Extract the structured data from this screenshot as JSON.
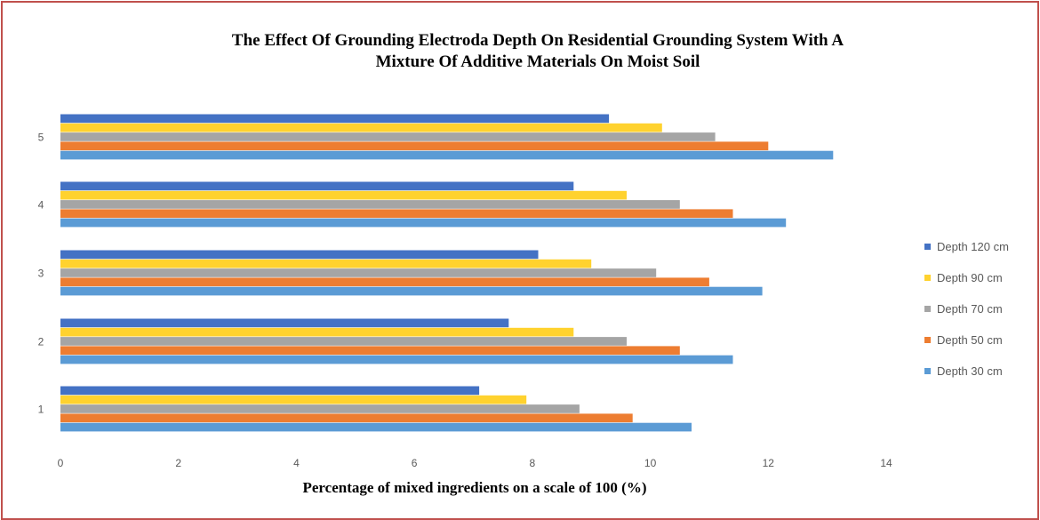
{
  "chart_data": {
    "type": "bar",
    "orientation": "horizontal",
    "title_lines": [
      "The Effect Of Grounding Electroda Depth On Residential Grounding System With A",
      "Mixture Of Additive Materials On Moist Soil"
    ],
    "xlabel": "Percentage of mixed ingredients on a scale of 100 (%)",
    "ylabel": "",
    "categories": [
      "1",
      "2",
      "3",
      "4",
      "5"
    ],
    "xlim": [
      0,
      14
    ],
    "x_ticks": [
      0,
      2,
      4,
      6,
      8,
      10,
      12,
      14
    ],
    "grid": false,
    "legend_position": "right",
    "series": [
      {
        "name": "Depth 30 cm",
        "color": "#5b9bd5",
        "values": [
          10.7,
          11.4,
          11.9,
          12.3,
          13.1
        ]
      },
      {
        "name": "Depth 50 cm",
        "color": "#ed7d31",
        "values": [
          9.7,
          10.5,
          11.0,
          11.4,
          12.0
        ]
      },
      {
        "name": "Depth 70 cm",
        "color": "#a5a5a5",
        "values": [
          8.8,
          9.6,
          10.1,
          10.5,
          11.1
        ]
      },
      {
        "name": "Depth 90 cm",
        "color": "#ffd22e",
        "values": [
          7.9,
          8.7,
          9.0,
          9.6,
          10.2
        ]
      },
      {
        "name": "Depth 120 cm",
        "color": "#4472c4",
        "values": [
          7.1,
          7.6,
          8.1,
          8.7,
          9.3
        ]
      }
    ],
    "legend_order": [
      "Depth 120 cm",
      "Depth 90 cm",
      "Depth 70 cm",
      "Depth 50 cm",
      "Depth 30 cm"
    ]
  }
}
